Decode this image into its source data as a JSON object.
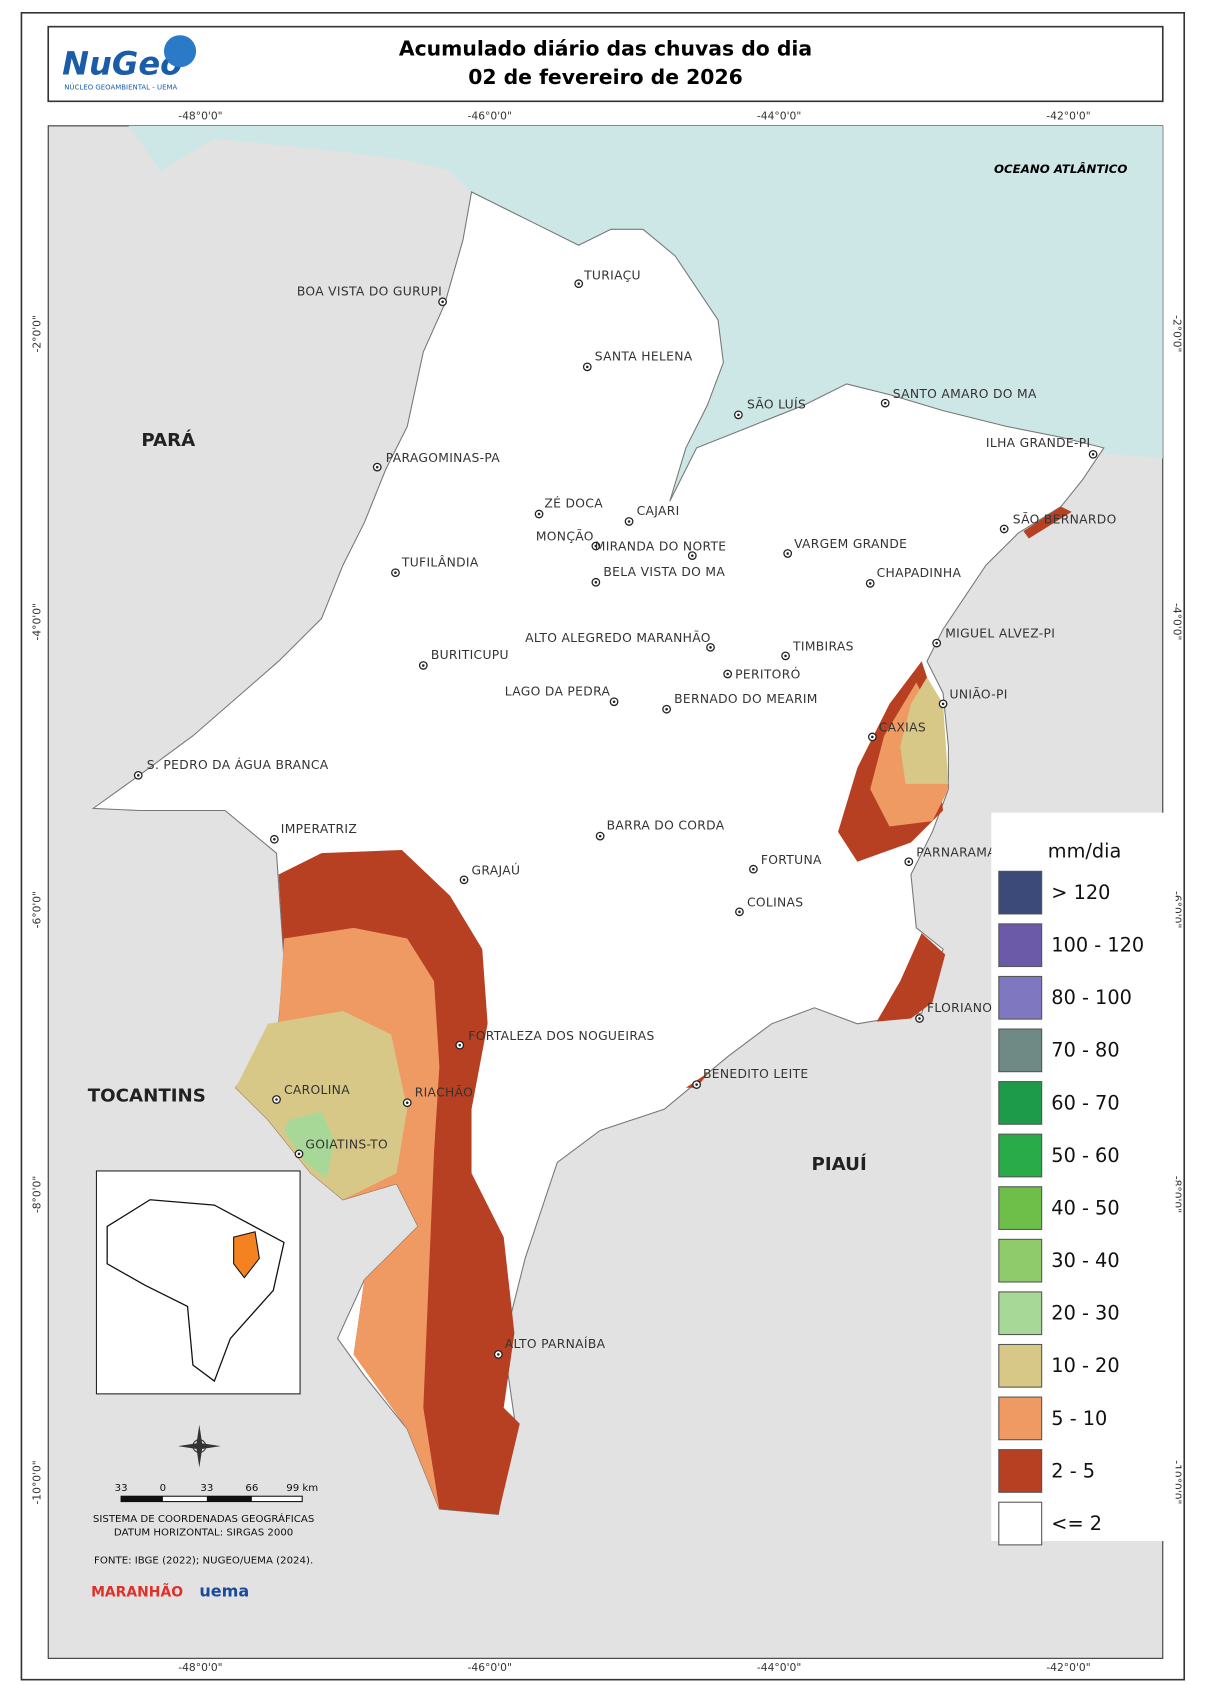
{
  "header": {
    "title_line1": "Acumulado diário das chuvas do dia",
    "title_line2": "02 de fevereiro de 2026",
    "logo": "NuGeo",
    "logo_subtitle": "NÚCLEO GEOAMBIENTAL - UEMA"
  },
  "coordinates": {
    "lon": [
      "-48°0'0\"",
      "-46°0'0\"",
      "-44°0'0\"",
      "-42°0'0\""
    ],
    "lat": [
      "-2°0'0\"",
      "-4°0'0\"",
      "-6°0'0\"",
      "-8°0'0\"",
      "-10°0'0\""
    ]
  },
  "regions": [
    "PARÁ",
    "TOCANTINS",
    "PIAUÍ",
    "OCEANO ATLÂNTICO"
  ],
  "cities": [
    "TURIAÇU",
    "BOA VISTA DO GURUPI",
    "SANTA HELENA",
    "SÃO LUÍS",
    "SANTO AMARO DO MA",
    "ILHA GRANDE-PI",
    "PARAGOMINAS-PA",
    "ZÉ DOCA",
    "CAJARI",
    "SÃO BERNARDO",
    "MONÇÃO",
    "MIRANDA DO NORTE",
    "VARGEM GRANDE",
    "TUFILÂNDIA",
    "BELA VISTA DO MA",
    "CHAPADINHA",
    "MIGUEL ALVEZ-PI",
    "ALTO ALEGREDO MARANHÃO",
    "TIMBIRAS",
    "BURITICUPU",
    "PERITORÓ",
    "LAGO DA PEDRA",
    "BERNADO DO MEARIM",
    "UNIÃO-PI",
    "CAXIAS",
    "S. PEDRO DA ÁGUA BRANCA",
    "IMPERATRIZ",
    "BARRA DO CORDA",
    "PARNARAMA",
    "FORTUNA",
    "GRAJAÚ",
    "COLINAS",
    "FLORIANO-PI",
    "FORTALEZA DOS NOGUEIRAS",
    "BENEDITO LEITE",
    "CAROLINA",
    "RIACHÃO",
    "GOIATINS-TO",
    "ALTO PARNAÍBA"
  ],
  "legend": {
    "title": "mm/dia",
    "items": [
      {
        "label": "> 120",
        "color": "#3b4a78"
      },
      {
        "label": "100 - 120",
        "color": "#6a5aa8"
      },
      {
        "label": "80 - 100",
        "color": "#7f77c0"
      },
      {
        "label": "70 - 80",
        "color": "#6f8a84"
      },
      {
        "label": "60 - 70",
        "color": "#1e9b4a"
      },
      {
        "label": "50 - 60",
        "color": "#2aab4a"
      },
      {
        "label": "40 - 50",
        "color": "#6ebe4a"
      },
      {
        "label": "30 - 40",
        "color": "#8fcb6a"
      },
      {
        "label": "20 - 30",
        "color": "#a8d898"
      },
      {
        "label": "10 - 20",
        "color": "#d8c888"
      },
      {
        "label": "5 - 10",
        "color": "#ee9a62"
      },
      {
        "label": "2 - 5",
        "color": "#b84022"
      },
      {
        "label": "<= 2",
        "color": "#ffffff"
      }
    ]
  },
  "scale_bar": [
    "33",
    "0",
    "33",
    "66",
    "99 km"
  ],
  "credits": {
    "crs": "SISTEMA DE COORDENADAS GEOGRÁFICAS",
    "datum": "DATUM HORIZONTAL: SIRGAS 2000",
    "source": "FONTE: IBGE (2022); NUGEO/UEMA (2024).",
    "logo_state": "MARANHÃO",
    "logo_uema": "uema"
  }
}
